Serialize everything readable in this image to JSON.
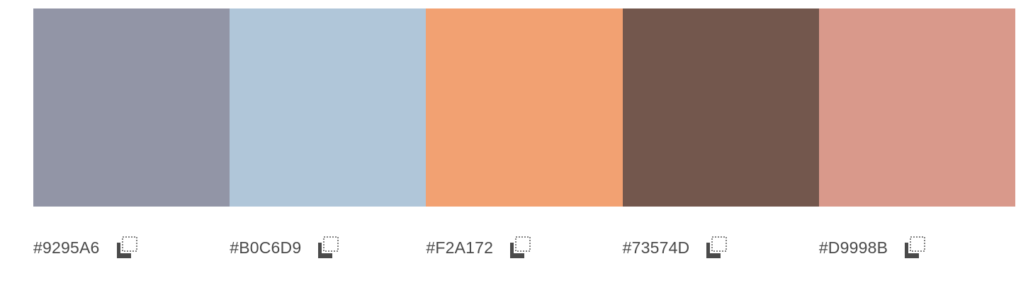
{
  "palette": {
    "swatches": [
      {
        "hex": "#9295A6",
        "color": "#9295A6"
      },
      {
        "hex": "#B0C6D9",
        "color": "#B0C6D9"
      },
      {
        "hex": "#F2A172",
        "color": "#F2A172"
      },
      {
        "hex": "#73574D",
        "color": "#73574D"
      },
      {
        "hex": "#D9998B",
        "color": "#D9998B"
      }
    ],
    "copy_icon": "copy-icon"
  }
}
